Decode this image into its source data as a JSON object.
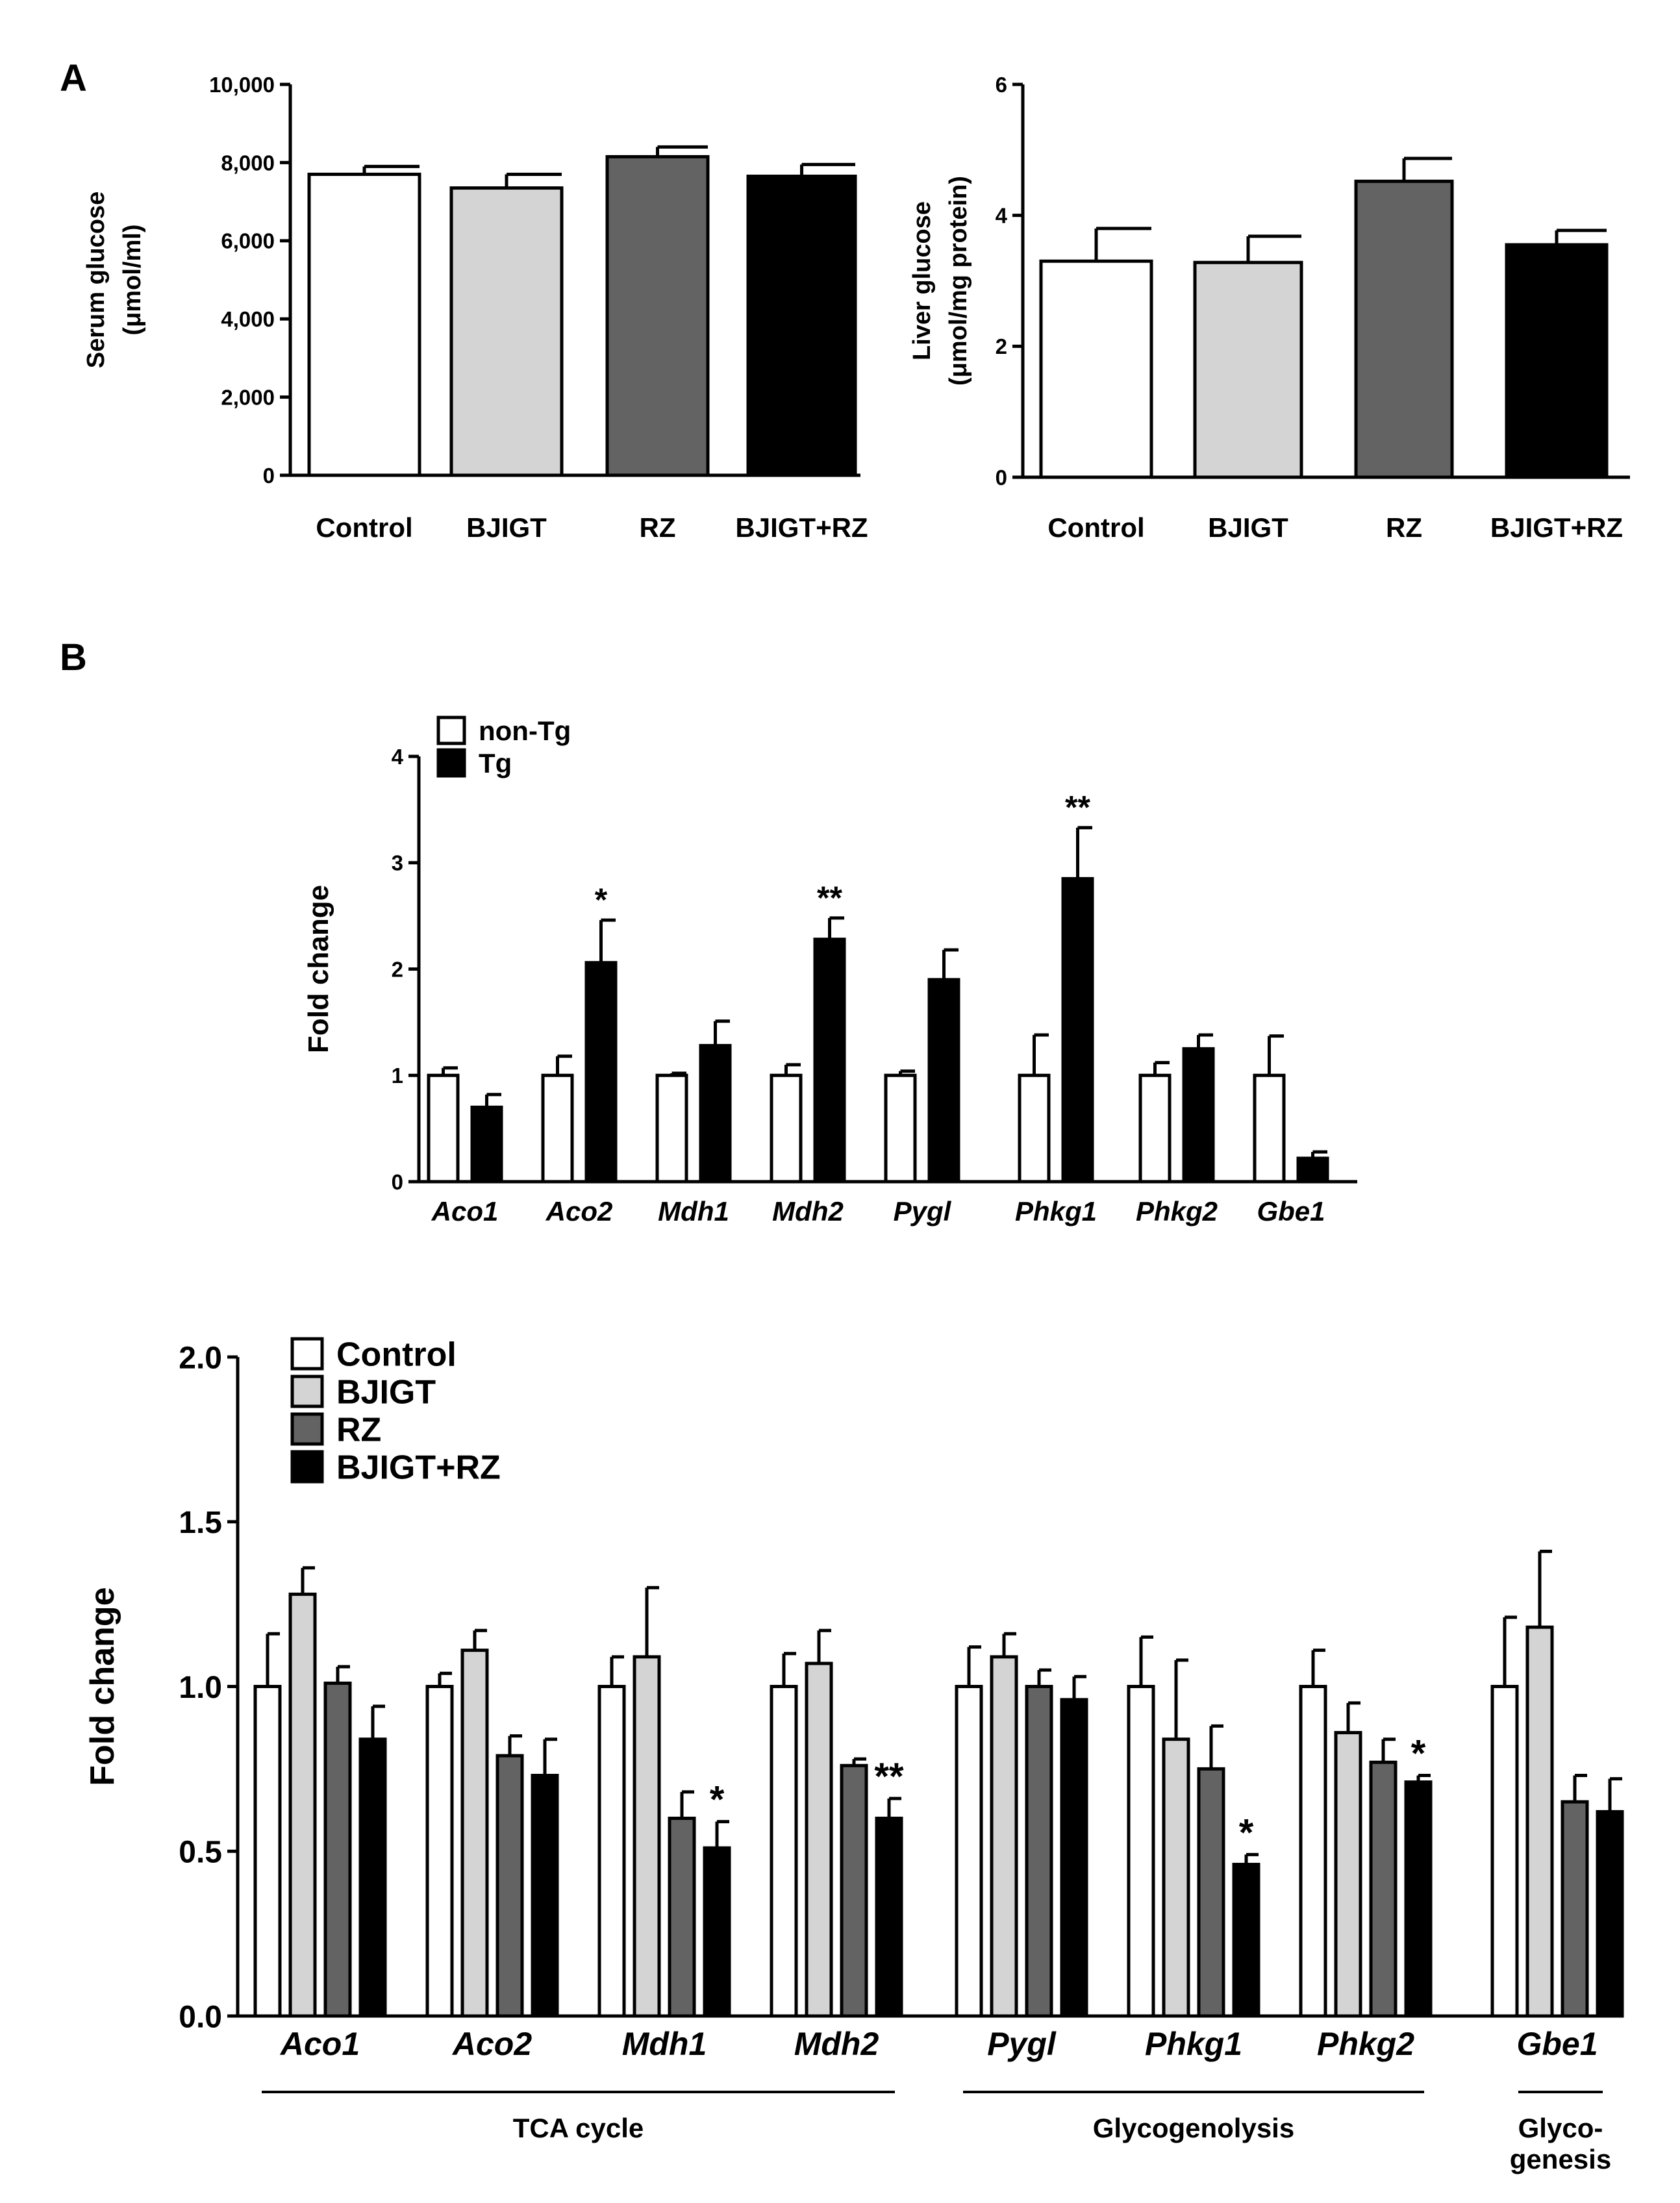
{
  "figure": {
    "panel_labels": [
      "A",
      "B"
    ],
    "fill_colors": {
      "Control": "#ffffff",
      "BJIGT": "#d4d4d4",
      "RZ": "#636363",
      "BJIGT+RZ": "#000000",
      "non-Tg": "#ffffff",
      "Tg": "#000000"
    }
  },
  "chart_data": [
    {
      "id": "A-serum",
      "type": "bar",
      "ylabel": [
        "Serum glucose",
        "(μmol/ml)"
      ],
      "ylim": [
        0,
        10000
      ],
      "yticks": [
        0,
        2000,
        4000,
        6000,
        8000,
        10000
      ],
      "ytick_labels": [
        "0",
        "2,000",
        "4,000",
        "6,000",
        "8,000",
        "10,000"
      ],
      "categories": [
        "Control",
        "BJIGT",
        "RZ",
        "BJIGT+RZ"
      ],
      "values": [
        7700,
        7350,
        8150,
        7650
      ],
      "errors": [
        200,
        350,
        250,
        300
      ],
      "fill_colors": [
        "#ffffff",
        "#d4d4d4",
        "#636363",
        "#000000"
      ]
    },
    {
      "id": "A-liver",
      "type": "bar",
      "ylabel": [
        "Liver glucose",
        "(μmol/mg protein)"
      ],
      "ylim": [
        0,
        6
      ],
      "yticks": [
        0,
        2,
        4,
        6
      ],
      "ytick_labels": [
        "0",
        "2",
        "4",
        "6"
      ],
      "categories": [
        "Control",
        "BJIGT",
        "RZ",
        "BJIGT+RZ"
      ],
      "values": [
        3.3,
        3.28,
        4.52,
        3.55
      ],
      "errors": [
        0.5,
        0.4,
        0.35,
        0.22
      ],
      "fill_colors": [
        "#ffffff",
        "#d4d4d4",
        "#636363",
        "#000000"
      ]
    },
    {
      "id": "B-tg",
      "type": "bar",
      "ylabel": [
        "Fold change"
      ],
      "ylim": [
        0,
        4
      ],
      "yticks": [
        0,
        1,
        2,
        3,
        4
      ],
      "ytick_labels": [
        "0",
        "1",
        "2",
        "3",
        "4"
      ],
      "categories": [
        "Aco1",
        "Aco2",
        "Mdh1",
        "Mdh2",
        "Pygl",
        "Phkg1",
        "Phkg2",
        "Gbe1"
      ],
      "category_italic": true,
      "legend": {
        "position": "top-left",
        "entries": [
          "non-Tg",
          "Tg"
        ]
      },
      "series": [
        {
          "name": "non-Tg",
          "values": [
            1.0,
            1.0,
            1.0,
            1.0,
            1.0,
            1.0,
            1.0,
            1.0
          ],
          "errors": [
            0.07,
            0.18,
            0.02,
            0.1,
            0.04,
            0.38,
            0.12,
            0.37
          ]
        },
        {
          "name": "Tg",
          "values": [
            0.7,
            2.06,
            1.28,
            2.28,
            1.9,
            2.85,
            1.25,
            0.22
          ],
          "errors": [
            0.12,
            0.4,
            0.23,
            0.2,
            0.28,
            0.48,
            0.13,
            0.06
          ]
        }
      ],
      "significance": [
        {
          "category": "Aco2",
          "series": "Tg",
          "label": "*"
        },
        {
          "category": "Mdh2",
          "series": "Tg",
          "label": "**"
        },
        {
          "category": "Phkg1",
          "series": "Tg",
          "label": "**"
        }
      ]
    },
    {
      "id": "B-treatment",
      "type": "bar",
      "ylabel": [
        "Fold change"
      ],
      "ylim": [
        0,
        2.0
      ],
      "yticks": [
        0,
        0.5,
        1.0,
        1.5,
        2.0
      ],
      "ytick_labels": [
        "0.0",
        "0.5",
        "1.0",
        "1.5",
        "2.0"
      ],
      "categories": [
        "Aco1",
        "Aco2",
        "Mdh1",
        "Mdh2",
        "Pygl",
        "Phkg1",
        "Phkg2",
        "Gbe1"
      ],
      "category_italic": true,
      "legend": {
        "position": "top-left",
        "entries": [
          "Control",
          "BJIGT",
          "RZ",
          "BJIGT+RZ"
        ]
      },
      "series": [
        {
          "name": "Control",
          "values": [
            1.0,
            1.0,
            1.0,
            1.0,
            1.0,
            1.0,
            1.0,
            1.0
          ],
          "errors": [
            0.16,
            0.04,
            0.09,
            0.1,
            0.12,
            0.15,
            0.11,
            0.21
          ]
        },
        {
          "name": "BJIGT",
          "values": [
            1.28,
            1.11,
            1.09,
            1.07,
            1.09,
            0.84,
            0.86,
            1.18
          ],
          "errors": [
            0.08,
            0.06,
            0.21,
            0.1,
            0.07,
            0.24,
            0.09,
            0.23
          ]
        },
        {
          "name": "RZ",
          "values": [
            1.01,
            0.79,
            0.6,
            0.76,
            1.0,
            0.75,
            0.77,
            0.65
          ],
          "errors": [
            0.05,
            0.06,
            0.08,
            0.02,
            0.05,
            0.13,
            0.07,
            0.08
          ]
        },
        {
          "name": "BJIGT+RZ",
          "values": [
            0.84,
            0.73,
            0.51,
            0.6,
            0.96,
            0.46,
            0.71,
            0.62
          ],
          "errors": [
            0.1,
            0.11,
            0.08,
            0.06,
            0.07,
            0.03,
            0.02,
            0.1
          ]
        }
      ],
      "significance": [
        {
          "category": "Mdh1",
          "series": "BJIGT+RZ",
          "label": "*"
        },
        {
          "category": "Mdh2",
          "series": "BJIGT+RZ",
          "label": "**"
        },
        {
          "category": "Phkg1",
          "series": "BJIGT+RZ",
          "label": "*"
        },
        {
          "category": "Phkg2",
          "series": "BJIGT+RZ",
          "label": "*"
        }
      ],
      "groups": [
        {
          "label": [
            "TCA cycle"
          ],
          "from": "Aco1",
          "to": "Mdh2"
        },
        {
          "label": [
            "Glycogenolysis"
          ],
          "from": "Pygl",
          "to": "Phkg2"
        },
        {
          "label": [
            "Glyco-",
            "genesis"
          ],
          "from": "Gbe1",
          "to": "Gbe1"
        }
      ]
    }
  ]
}
